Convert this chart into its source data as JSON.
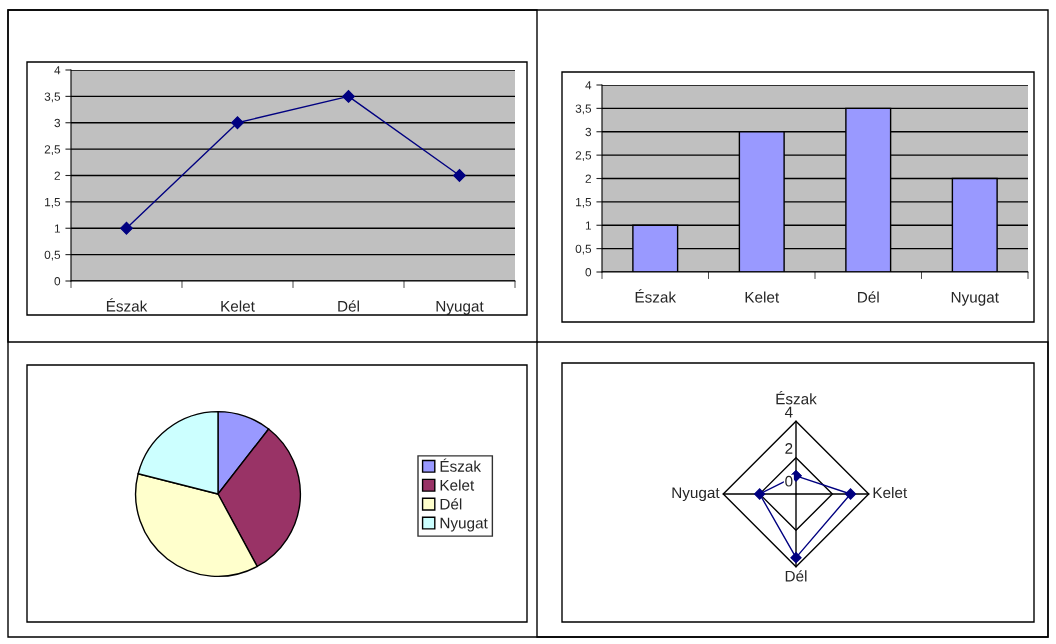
{
  "chart_data": [
    {
      "type": "line",
      "categories": [
        "Észak",
        "Kelet",
        "Dél",
        "Nyugat"
      ],
      "values": [
        1,
        3,
        3.5,
        2
      ],
      "color": "#000080",
      "ylim": [
        0,
        4
      ],
      "yticks": [
        0,
        {
          "value": 0.5,
          "label": "0,5"
        },
        1,
        {
          "value": 1.5,
          "label": "1,5"
        },
        2,
        {
          "value": 2.5,
          "label": "2,5"
        },
        3,
        {
          "value": 3.5,
          "label": "3,5"
        },
        4
      ],
      "grid": "y",
      "marker": "diamond",
      "line_style": "solid"
    },
    {
      "type": "bar",
      "categories": [
        "Észak",
        "Kelet",
        "Dél",
        "Nyugat"
      ],
      "values": [
        1,
        3,
        3.5,
        2
      ],
      "color": "#9999ff",
      "ylim": [
        0,
        4
      ],
      "yticks": [
        0,
        {
          "value": 0.5,
          "label": "0,5"
        },
        1,
        {
          "value": 1.5,
          "label": "1,5"
        },
        2,
        {
          "value": 2.5,
          "label": "2,5"
        },
        3,
        {
          "value": 3.5,
          "label": "3,5"
        },
        4
      ],
      "grid": "y"
    },
    {
      "type": "pie",
      "categories": [
        "Észak",
        "Kelet",
        "Dél",
        "Nyugat"
      ],
      "values": [
        10.53,
        31.58,
        36.84,
        21.05
      ],
      "colors": [
        "#9999ff",
        "#993366",
        "#ffffcc",
        "#ccffff"
      ],
      "legend": "right"
    },
    {
      "type": "radar",
      "categories": [
        "Észak",
        "Kelet",
        "Dél",
        "Nyugat"
      ],
      "series": [
        {
          "color": "#000080",
          "values": [
            1,
            3,
            3.5,
            2
          ]
        }
      ],
      "ylim": [
        0,
        4
      ],
      "yticks": [
        0,
        2,
        4
      ],
      "marker": "diamond"
    }
  ]
}
